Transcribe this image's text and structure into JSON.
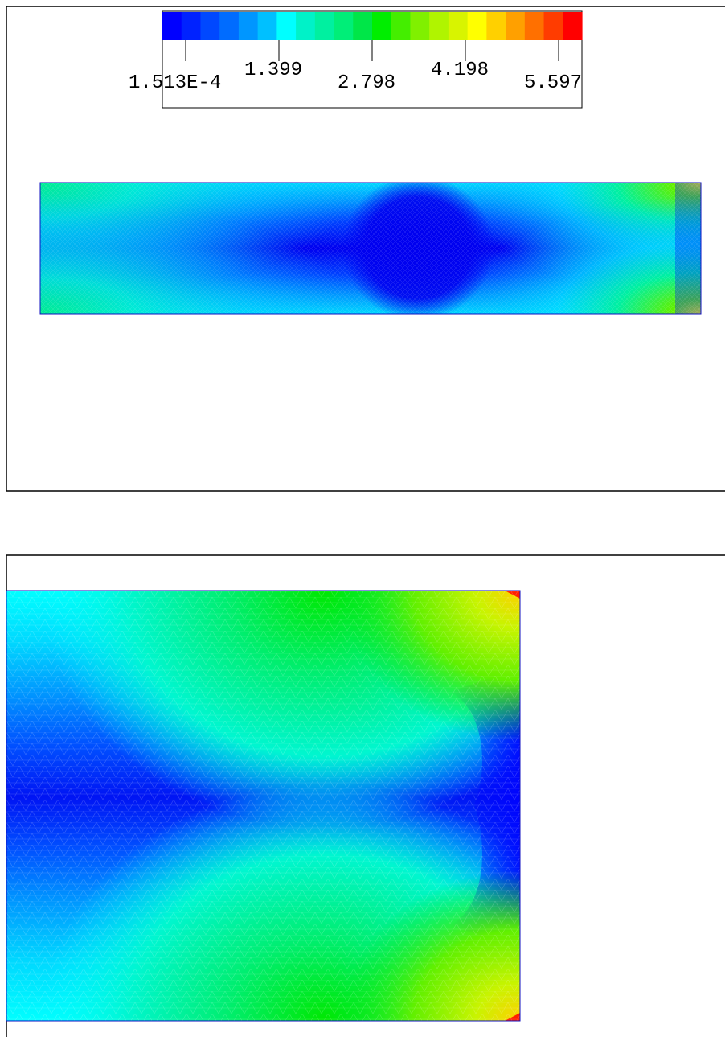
{
  "legend": {
    "colors": [
      "#0000ff",
      "#0022ff",
      "#0048ff",
      "#006cff",
      "#0096ff",
      "#00c0ff",
      "#00ffff",
      "#00f2c8",
      "#00f0a0",
      "#00ee78",
      "#00e648",
      "#00ee00",
      "#44ee00",
      "#80f000",
      "#b0f400",
      "#d8f400",
      "#ffff00",
      "#ffd000",
      "#ffa000",
      "#ff7000",
      "#ff3c00",
      "#ff0000"
    ],
    "labels": [
      "1.513E-4",
      "1.399",
      "2.798",
      "4.198",
      "5.597"
    ]
  },
  "views": {
    "full_domain": "full-domain-contour",
    "zoom_domain": "zoomed-contour"
  }
}
